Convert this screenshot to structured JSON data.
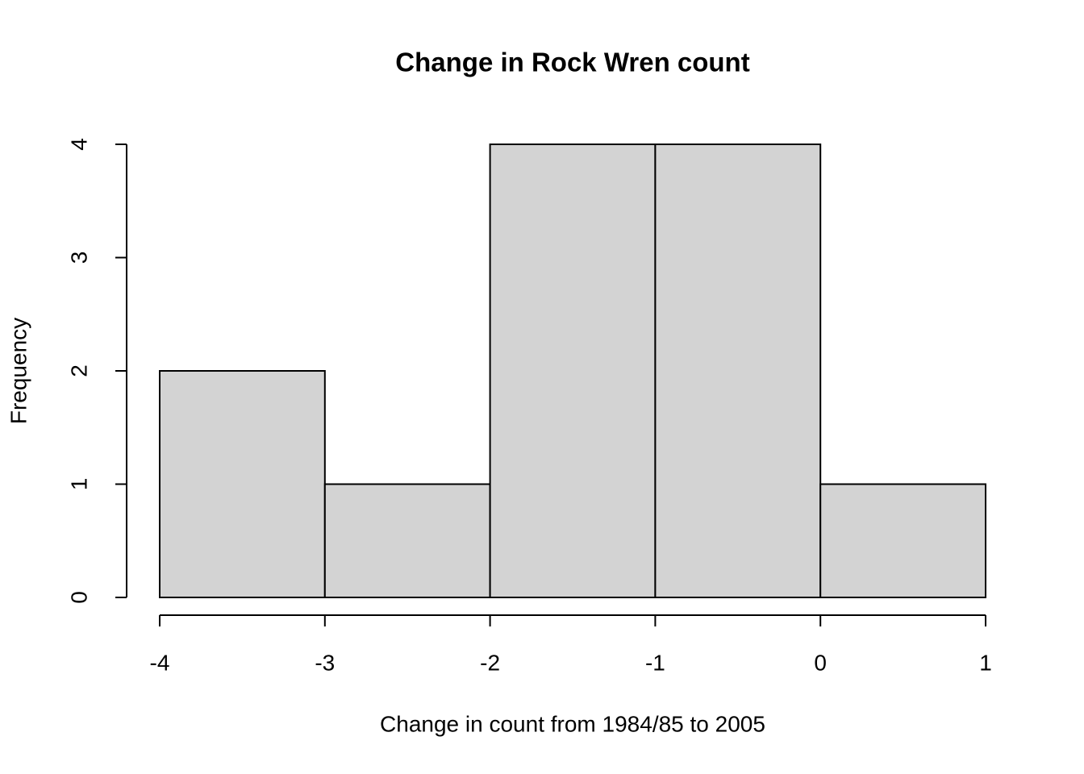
{
  "chart_data": {
    "type": "histogram",
    "title": "Change in Rock Wren count",
    "xlabel": "Change in count from 1984/85 to 2005",
    "ylabel": "Frequency",
    "bins": [
      -4,
      -3,
      -2,
      -1,
      0,
      1
    ],
    "values": [
      2,
      1,
      4,
      4,
      1
    ],
    "color": "#d3d3d3",
    "xlim": [
      -4,
      1
    ],
    "xticks": [
      -4,
      -3,
      -2,
      -1,
      0,
      1
    ],
    "ylim": [
      0,
      4
    ],
    "yticks": [
      0,
      1,
      2,
      3,
      4
    ]
  }
}
